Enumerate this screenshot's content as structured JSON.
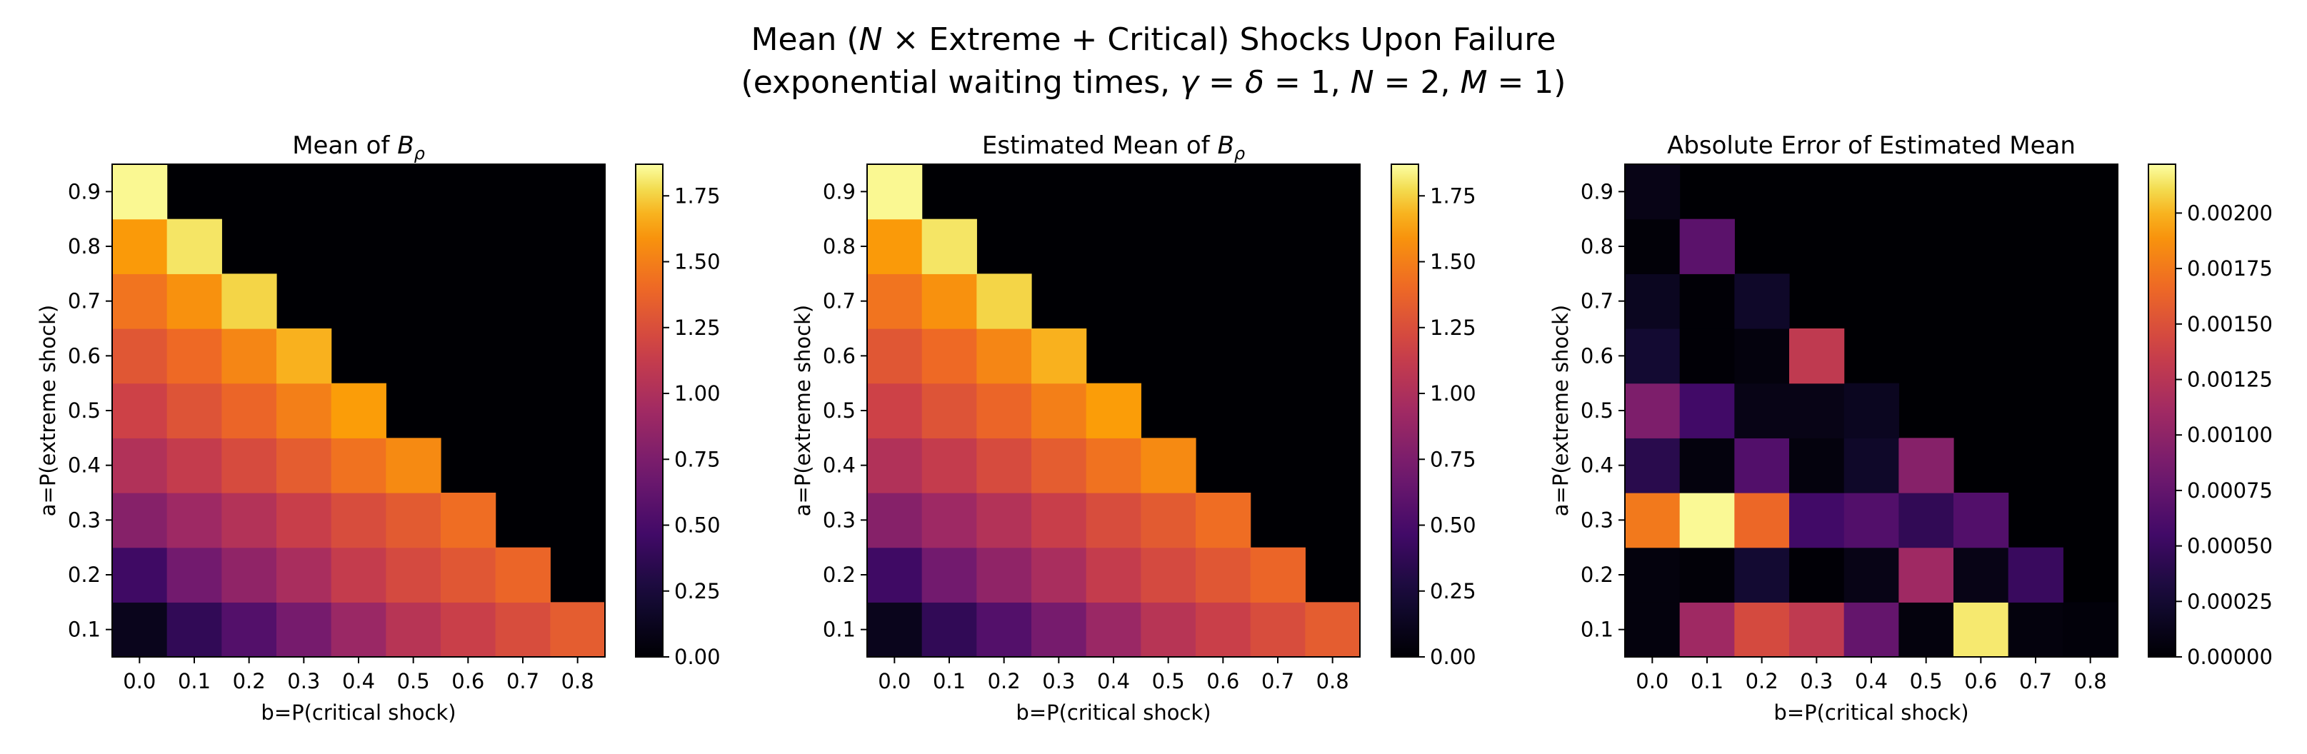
{
  "figure": {
    "title_line1_a": "Mean (",
    "title_line1_var": "N",
    "title_line1_b": " × Extreme + Critical) Shocks Upon Failure",
    "title_line2_a": "(exponential waiting times, ",
    "title_line2_gamma": "γ",
    "title_line2_eq1": " = ",
    "title_line2_delta": "δ",
    "title_line2_eq2": " = 1, ",
    "title_line2_N": "N",
    "title_line2_eq3": " = 2, ",
    "title_line2_M": "M",
    "title_line2_eq4": " = 1)"
  },
  "colors": {
    "colormap": "inferno",
    "background": "#000004"
  },
  "chart_data": [
    {
      "type": "heatmap",
      "title_main": "Mean of ",
      "title_sym": "B",
      "title_sub": "ρ",
      "xlabel": "b=P(critical shock)",
      "ylabel": "a=P(extreme shock)",
      "x": [
        0.0,
        0.1,
        0.2,
        0.3,
        0.4,
        0.5,
        0.6,
        0.7,
        0.8
      ],
      "y": [
        0.1,
        0.2,
        0.3,
        0.4,
        0.5,
        0.6,
        0.7,
        0.8,
        0.9
      ],
      "x_tick_labels": [
        "0.0",
        "0.1",
        "0.2",
        "0.3",
        "0.4",
        "0.5",
        "0.6",
        "0.7",
        "0.8"
      ],
      "y_tick_labels": [
        "0.1",
        "0.2",
        "0.3",
        "0.4",
        "0.5",
        "0.6",
        "0.7",
        "0.8",
        "0.9"
      ],
      "values": [
        [
          0.11,
          0.38,
          0.55,
          0.72,
          0.9,
          1.05,
          1.15,
          1.24,
          1.33
        ],
        [
          0.45,
          0.7,
          0.85,
          0.98,
          1.12,
          1.22,
          1.3,
          1.38,
          null
        ],
        [
          0.8,
          0.92,
          1.03,
          1.14,
          1.24,
          1.32,
          1.42,
          null,
          null
        ],
        [
          1.02,
          1.12,
          1.23,
          1.33,
          1.44,
          1.55,
          null,
          null,
          null
        ],
        [
          1.17,
          1.28,
          1.38,
          1.5,
          1.63,
          null,
          null,
          null,
          null
        ],
        [
          1.3,
          1.4,
          1.53,
          1.68,
          null,
          null,
          null,
          null,
          null
        ],
        [
          1.45,
          1.58,
          1.76,
          null,
          null,
          null,
          null,
          null,
          null
        ],
        [
          1.62,
          1.8,
          null,
          null,
          null,
          null,
          null,
          null,
          null
        ],
        [
          1.85,
          null,
          null,
          null,
          null,
          null,
          null,
          null,
          null
        ]
      ],
      "colorbar": {
        "min": 0,
        "max": 1.87,
        "ticks": [
          0,
          0.25,
          0.5,
          0.75,
          1.0,
          1.25,
          1.5,
          1.75
        ],
        "tick_labels": [
          "0.00",
          "0.25",
          "0.50",
          "0.75",
          "1.00",
          "1.25",
          "1.50",
          "1.75"
        ]
      }
    },
    {
      "type": "heatmap",
      "title_main": "Estimated Mean of ",
      "title_sym": "B",
      "title_sub": "ρ",
      "xlabel": "b=P(critical shock)",
      "ylabel": "a=P(extreme shock)",
      "x": [
        0.0,
        0.1,
        0.2,
        0.3,
        0.4,
        0.5,
        0.6,
        0.7,
        0.8
      ],
      "y": [
        0.1,
        0.2,
        0.3,
        0.4,
        0.5,
        0.6,
        0.7,
        0.8,
        0.9
      ],
      "x_tick_labels": [
        "0.0",
        "0.1",
        "0.2",
        "0.3",
        "0.4",
        "0.5",
        "0.6",
        "0.7",
        "0.8"
      ],
      "y_tick_labels": [
        "0.1",
        "0.2",
        "0.3",
        "0.4",
        "0.5",
        "0.6",
        "0.7",
        "0.8",
        "0.9"
      ],
      "values": [
        [
          0.11,
          0.38,
          0.55,
          0.72,
          0.9,
          1.05,
          1.15,
          1.24,
          1.33
        ],
        [
          0.45,
          0.7,
          0.85,
          0.98,
          1.12,
          1.22,
          1.3,
          1.38,
          null
        ],
        [
          0.8,
          0.92,
          1.03,
          1.14,
          1.24,
          1.32,
          1.42,
          null,
          null
        ],
        [
          1.02,
          1.12,
          1.23,
          1.33,
          1.44,
          1.55,
          null,
          null,
          null
        ],
        [
          1.17,
          1.28,
          1.38,
          1.5,
          1.63,
          null,
          null,
          null,
          null
        ],
        [
          1.3,
          1.4,
          1.53,
          1.68,
          null,
          null,
          null,
          null,
          null
        ],
        [
          1.45,
          1.58,
          1.76,
          null,
          null,
          null,
          null,
          null,
          null
        ],
        [
          1.62,
          1.8,
          null,
          null,
          null,
          null,
          null,
          null,
          null
        ],
        [
          1.85,
          null,
          null,
          null,
          null,
          null,
          null,
          null,
          null
        ]
      ],
      "colorbar": {
        "min": 0,
        "max": 1.87,
        "ticks": [
          0,
          0.25,
          0.5,
          0.75,
          1.0,
          1.25,
          1.5,
          1.75
        ],
        "tick_labels": [
          "0.00",
          "0.25",
          "0.50",
          "0.75",
          "1.00",
          "1.25",
          "1.50",
          "1.75"
        ]
      }
    },
    {
      "type": "heatmap",
      "title_main": "Absolute Error of Estimated Mean",
      "title_sym": "",
      "title_sub": "",
      "xlabel": "b=P(critical shock)",
      "ylabel": "a=P(extreme shock)",
      "x": [
        0.0,
        0.1,
        0.2,
        0.3,
        0.4,
        0.5,
        0.6,
        0.7,
        0.8
      ],
      "y": [
        0.1,
        0.2,
        0.3,
        0.4,
        0.5,
        0.6,
        0.7,
        0.8,
        0.9
      ],
      "x_tick_labels": [
        "0.0",
        "0.1",
        "0.2",
        "0.3",
        "0.4",
        "0.5",
        "0.6",
        "0.7",
        "0.8"
      ],
      "y_tick_labels": [
        "0.1",
        "0.2",
        "0.3",
        "0.4",
        "0.5",
        "0.6",
        "0.7",
        "0.8",
        "0.9"
      ],
      "values": [
        [
          5e-05,
          0.0011,
          0.00145,
          0.0013,
          0.00075,
          5e-05,
          0.00215,
          5e-05,
          3e-05
        ],
        [
          5e-05,
          2e-05,
          0.00025,
          1e-05,
          0.0001,
          0.0011,
          0.0001,
          0.0005,
          null
        ],
        [
          0.00175,
          0.0022,
          0.00165,
          0.00055,
          0.00065,
          0.00045,
          0.00065,
          null,
          null
        ],
        [
          0.0004,
          5e-05,
          0.00065,
          5e-05,
          0.0002,
          0.00095,
          null,
          null,
          null
        ],
        [
          0.0009,
          0.00055,
          0.0001,
          0.0001,
          0.00015,
          null,
          null,
          null,
          null
        ],
        [
          0.00025,
          1e-05,
          5e-05,
          0.0013,
          null,
          null,
          null,
          null,
          null
        ],
        [
          0.00015,
          1e-05,
          0.0002,
          null,
          null,
          null,
          null,
          null,
          null
        ],
        [
          2e-05,
          0.0007,
          null,
          null,
          null,
          null,
          null,
          null,
          null
        ],
        [
          0.0001,
          null,
          null,
          null,
          null,
          null,
          null,
          null,
          null
        ]
      ],
      "colorbar": {
        "min": 0,
        "max": 0.00222,
        "ticks": [
          0,
          0.00025,
          0.0005,
          0.00075,
          0.001,
          0.00125,
          0.0015,
          0.00175,
          0.002
        ],
        "tick_labels": [
          "0.00000",
          "0.00025",
          "0.00050",
          "0.00075",
          "0.00100",
          "0.00125",
          "0.00150",
          "0.00175",
          "0.00200"
        ]
      }
    }
  ]
}
